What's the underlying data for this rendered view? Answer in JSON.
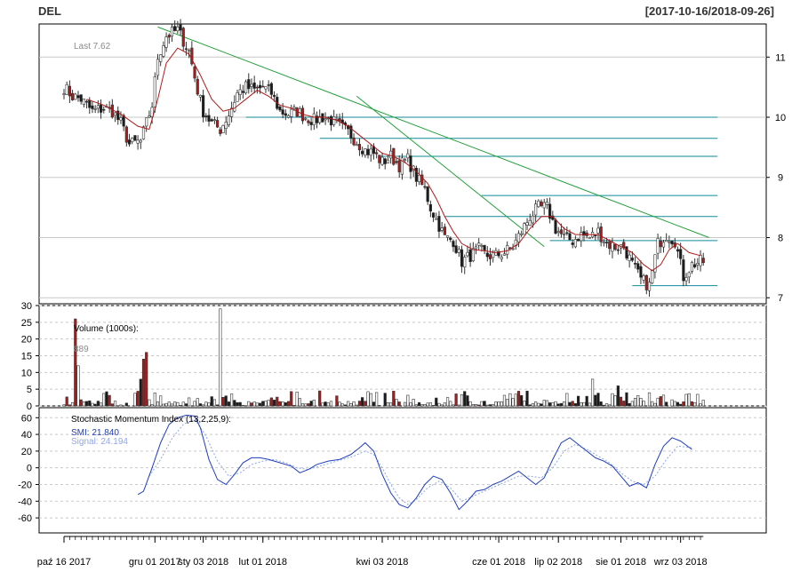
{
  "symbol": "DEL",
  "date_range": "[2017-10-16/2018-09-26]",
  "colors": {
    "up_candle": "#ffffff",
    "down_candle": "#1a1a1a",
    "down_red_candle": "#a81c1c",
    "sma": "#b01818",
    "trend_green": "#22a03a",
    "level_teal": "#138a9a",
    "smi": "#1f3fbf",
    "signal": "#8fa6e6",
    "grid": "#c8c8c8"
  },
  "price_panel": {
    "last_label": "Last 7.62",
    "y_ticks": [
      "7",
      "8",
      "9",
      "10",
      "11"
    ],
    "ylim": [
      6.9,
      11.55
    ]
  },
  "volume_panel": {
    "title": "Volume (1000s):",
    "last_value": "889",
    "y_ticks": [
      "0",
      "5",
      "10",
      "15",
      "20",
      "25",
      "30"
    ],
    "ylim": [
      0,
      30
    ]
  },
  "smi_panel": {
    "title": "Stochastic Momentum Index (13,2,25,9):",
    "smi_label": "SMI: 21.840",
    "signal_label": "Signal: 24.194",
    "y_ticks": [
      "-60",
      "-40",
      "-20",
      "0",
      "20",
      "40",
      "60"
    ],
    "ylim": [
      -78,
      72
    ]
  },
  "x_labels": [
    "paź 16 2017",
    "gru 01 2017",
    "sty 03 2018",
    "lut 01 2018",
    "kwi 03 2018",
    "cze 01 2018",
    "lip 02 2018",
    "sie 01 2018",
    "wrz 03 2018"
  ],
  "chart_data": {
    "type": "candlestick",
    "n_bars": 240,
    "x_label_bars": [
      0,
      32,
      49,
      70,
      112,
      153,
      174,
      196,
      217
    ],
    "close_path": [
      [
        0,
        10.5
      ],
      [
        3,
        10.35
      ],
      [
        6,
        10.3
      ],
      [
        10,
        10.1
      ],
      [
        14,
        10.15
      ],
      [
        17,
        10.1
      ],
      [
        20,
        9.9
      ],
      [
        23,
        9.55
      ],
      [
        27,
        9.6
      ],
      [
        31,
        10.2
      ],
      [
        33,
        11.0
      ],
      [
        36,
        11.35
      ],
      [
        40,
        11.45
      ],
      [
        44,
        11.1
      ],
      [
        47,
        10.45
      ],
      [
        49,
        10.1
      ],
      [
        52,
        9.9
      ],
      [
        55,
        9.8
      ],
      [
        58,
        10.05
      ],
      [
        61,
        10.4
      ],
      [
        64,
        10.5
      ],
      [
        67,
        10.45
      ],
      [
        70,
        10.5
      ],
      [
        73,
        10.4
      ],
      [
        76,
        10.1
      ],
      [
        79,
        10.05
      ],
      [
        82,
        10.1
      ],
      [
        85,
        10.0
      ],
      [
        88,
        9.95
      ],
      [
        91,
        10.0
      ],
      [
        94,
        9.95
      ],
      [
        97,
        9.85
      ],
      [
        100,
        9.75
      ],
      [
        103,
        9.6
      ],
      [
        106,
        9.45
      ],
      [
        109,
        9.4
      ],
      [
        112,
        9.25
      ],
      [
        115,
        9.35
      ],
      [
        118,
        9.2
      ],
      [
        121,
        9.3
      ],
      [
        124,
        9.0
      ],
      [
        127,
        8.8
      ],
      [
        129,
        8.5
      ],
      [
        131,
        8.3
      ],
      [
        134,
        8.0
      ],
      [
        137,
        7.95
      ],
      [
        140,
        7.6
      ],
      [
        143,
        7.7
      ],
      [
        146,
        7.8
      ],
      [
        149,
        7.7
      ],
      [
        152,
        7.7
      ],
      [
        155,
        7.75
      ],
      [
        158,
        7.85
      ],
      [
        161,
        8.1
      ],
      [
        164,
        8.35
      ],
      [
        167,
        8.5
      ],
      [
        170,
        8.5
      ],
      [
        173,
        8.15
      ],
      [
        176,
        8.0
      ],
      [
        179,
        7.95
      ],
      [
        182,
        8.05
      ],
      [
        185,
        8.0
      ],
      [
        188,
        8.1
      ],
      [
        191,
        7.9
      ],
      [
        194,
        7.85
      ],
      [
        197,
        7.85
      ],
      [
        200,
        7.55
      ],
      [
        203,
        7.3
      ],
      [
        206,
        7.2
      ],
      [
        209,
        7.9
      ],
      [
        212,
        8.05
      ],
      [
        215,
        7.95
      ],
      [
        218,
        7.35
      ],
      [
        221,
        7.55
      ],
      [
        224,
        7.6
      ]
    ],
    "sma_path": [
      [
        8,
        10.3
      ],
      [
        14,
        10.2
      ],
      [
        20,
        10.05
      ],
      [
        26,
        9.85
      ],
      [
        30,
        9.8
      ],
      [
        33,
        10.3
      ],
      [
        36,
        10.9
      ],
      [
        40,
        11.15
      ],
      [
        44,
        11.05
      ],
      [
        48,
        10.7
      ],
      [
        52,
        10.3
      ],
      [
        56,
        10.1
      ],
      [
        60,
        10.15
      ],
      [
        64,
        10.3
      ],
      [
        68,
        10.45
      ],
      [
        72,
        10.35
      ],
      [
        76,
        10.2
      ],
      [
        80,
        10.15
      ],
      [
        84,
        10.05
      ],
      [
        88,
        10.0
      ],
      [
        92,
        10.0
      ],
      [
        96,
        9.95
      ],
      [
        100,
        9.85
      ],
      [
        104,
        9.7
      ],
      [
        108,
        9.55
      ],
      [
        112,
        9.4
      ],
      [
        116,
        9.35
      ],
      [
        120,
        9.25
      ],
      [
        124,
        9.1
      ],
      [
        128,
        8.9
      ],
      [
        131,
        8.65
      ],
      [
        134,
        8.35
      ],
      [
        137,
        8.1
      ],
      [
        140,
        7.9
      ],
      [
        144,
        7.8
      ],
      [
        148,
        7.78
      ],
      [
        152,
        7.75
      ],
      [
        156,
        7.78
      ],
      [
        160,
        7.9
      ],
      [
        164,
        8.15
      ],
      [
        168,
        8.35
      ],
      [
        172,
        8.35
      ],
      [
        176,
        8.15
      ],
      [
        180,
        8.05
      ],
      [
        184,
        8.05
      ],
      [
        188,
        8.05
      ],
      [
        192,
        7.95
      ],
      [
        196,
        7.85
      ],
      [
        200,
        7.75
      ],
      [
        204,
        7.55
      ],
      [
        207,
        7.45
      ],
      [
        210,
        7.55
      ],
      [
        213,
        7.8
      ],
      [
        216,
        7.9
      ],
      [
        220,
        7.75
      ],
      [
        224,
        7.7
      ]
    ],
    "trendlines": [
      {
        "from": [
          33,
          11.5
        ],
        "to": [
          227,
          8.0
        ]
      },
      {
        "from": [
          103,
          10.35
        ],
        "to": [
          169,
          7.85
        ]
      }
    ],
    "levels": [
      {
        "y": 10.0,
        "from": 64,
        "to": 230
      },
      {
        "y": 9.65,
        "from": 90,
        "to": 230
      },
      {
        "y": 9.35,
        "from": 111,
        "to": 230
      },
      {
        "y": 8.7,
        "from": 147,
        "to": 230
      },
      {
        "y": 8.35,
        "from": 134,
        "to": 230
      },
      {
        "y": 7.95,
        "from": 171,
        "to": 230
      },
      {
        "y": 7.2,
        "from": 200,
        "to": 230
      }
    ],
    "volume_spikes": [
      [
        4,
        26
      ],
      [
        5,
        12
      ],
      [
        27,
        8
      ],
      [
        28,
        14
      ],
      [
        29,
        16
      ],
      [
        55,
        29
      ],
      [
        186,
        8
      ],
      [
        195,
        6
      ]
    ],
    "smi_path": [
      [
        26,
        -32
      ],
      [
        28,
        -28
      ],
      [
        31,
        0
      ],
      [
        34,
        30
      ],
      [
        37,
        52
      ],
      [
        40,
        60
      ],
      [
        43,
        63
      ],
      [
        46,
        62
      ],
      [
        48,
        48
      ],
      [
        51,
        10
      ],
      [
        54,
        -14
      ],
      [
        57,
        -20
      ],
      [
        60,
        -8
      ],
      [
        63,
        6
      ],
      [
        66,
        12
      ],
      [
        69,
        12
      ],
      [
        72,
        10
      ],
      [
        76,
        6
      ],
      [
        80,
        2
      ],
      [
        83,
        -6
      ],
      [
        86,
        -2
      ],
      [
        89,
        4
      ],
      [
        93,
        8
      ],
      [
        97,
        10
      ],
      [
        101,
        16
      ],
      [
        104,
        24
      ],
      [
        106,
        30
      ],
      [
        109,
        20
      ],
      [
        112,
        -8
      ],
      [
        115,
        -30
      ],
      [
        118,
        -44
      ],
      [
        121,
        -48
      ],
      [
        124,
        -36
      ],
      [
        127,
        -20
      ],
      [
        130,
        -10
      ],
      [
        133,
        -14
      ],
      [
        136,
        -30
      ],
      [
        139,
        -50
      ],
      [
        142,
        -40
      ],
      [
        145,
        -28
      ],
      [
        148,
        -26
      ],
      [
        151,
        -20
      ],
      [
        154,
        -16
      ],
      [
        157,
        -10
      ],
      [
        160,
        -4
      ],
      [
        163,
        -12
      ],
      [
        166,
        -20
      ],
      [
        169,
        -12
      ],
      [
        172,
        10
      ],
      [
        175,
        30
      ],
      [
        178,
        36
      ],
      [
        181,
        28
      ],
      [
        184,
        20
      ],
      [
        187,
        12
      ],
      [
        190,
        8
      ],
      [
        193,
        2
      ],
      [
        196,
        -10
      ],
      [
        199,
        -22
      ],
      [
        202,
        -18
      ],
      [
        205,
        -24
      ],
      [
        208,
        4
      ],
      [
        211,
        26
      ],
      [
        214,
        36
      ],
      [
        217,
        32
      ],
      [
        221,
        22
      ]
    ],
    "signal_path": [
      [
        30,
        -10
      ],
      [
        34,
        10
      ],
      [
        38,
        35
      ],
      [
        42,
        52
      ],
      [
        46,
        58
      ],
      [
        50,
        38
      ],
      [
        54,
        8
      ],
      [
        58,
        -10
      ],
      [
        62,
        -6
      ],
      [
        66,
        4
      ],
      [
        70,
        8
      ],
      [
        74,
        10
      ],
      [
        78,
        6
      ],
      [
        82,
        0
      ],
      [
        86,
        -2
      ],
      [
        90,
        2
      ],
      [
        94,
        6
      ],
      [
        98,
        10
      ],
      [
        102,
        14
      ],
      [
        106,
        20
      ],
      [
        109,
        16
      ],
      [
        112,
        0
      ],
      [
        115,
        -20
      ],
      [
        118,
        -36
      ],
      [
        121,
        -44
      ],
      [
        124,
        -38
      ],
      [
        128,
        -24
      ],
      [
        132,
        -16
      ],
      [
        136,
        -24
      ],
      [
        140,
        -40
      ],
      [
        144,
        -34
      ],
      [
        148,
        -28
      ],
      [
        152,
        -22
      ],
      [
        156,
        -16
      ],
      [
        160,
        -10
      ],
      [
        164,
        -10
      ],
      [
        168,
        -12
      ],
      [
        172,
        0
      ],
      [
        176,
        20
      ],
      [
        180,
        28
      ],
      [
        184,
        22
      ],
      [
        188,
        14
      ],
      [
        192,
        6
      ],
      [
        196,
        -6
      ],
      [
        200,
        -16
      ],
      [
        204,
        -20
      ],
      [
        208,
        -10
      ],
      [
        212,
        10
      ],
      [
        216,
        26
      ],
      [
        221,
        24
      ]
    ]
  }
}
